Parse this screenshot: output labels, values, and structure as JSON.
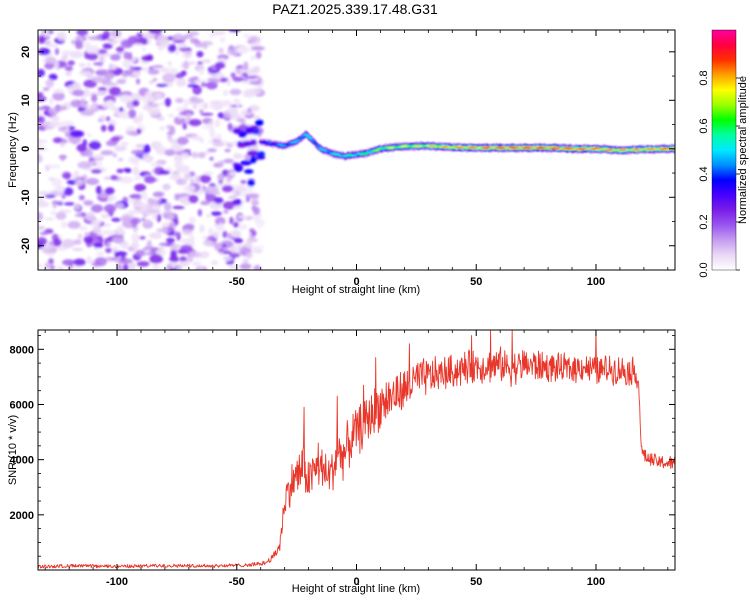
{
  "title": "PAZ1.2025.339.17.48.G31",
  "chart_data": [
    {
      "type": "heatmap",
      "xlabel": "Height of straight line (km)",
      "ylabel": "Frequency (Hz)",
      "xlim": [
        -133,
        133
      ],
      "ylim": [
        -25,
        24.5
      ],
      "xticks": [
        -100,
        -50,
        0,
        50,
        100
      ],
      "xtick_labels": [
        "-100",
        "-50",
        "0",
        "50",
        "100"
      ],
      "yticks": [
        -20,
        -10,
        0,
        10,
        20
      ],
      "ytick_labels": [
        "-20",
        "-10",
        "0",
        "10",
        "20"
      ],
      "noise_region": {
        "x_range": [
          -133,
          -40
        ],
        "frequency_range": [
          -25,
          24.5
        ],
        "level": "low amplitude noise 0.1-0.3"
      },
      "signal_ridge": {
        "x": [
          -40,
          -35,
          -30,
          -25,
          -21,
          -18,
          -15,
          -10,
          -5,
          0,
          5,
          10,
          15,
          20,
          30,
          40,
          50,
          60,
          70,
          80,
          90,
          100,
          110,
          120,
          133
        ],
        "frequency": [
          1.5,
          1.0,
          0.6,
          1.5,
          3.0,
          1.5,
          0.0,
          -1.0,
          -1.5,
          -1.2,
          -0.8,
          0.0,
          0.3,
          0.5,
          0.6,
          0.3,
          0.2,
          0.2,
          0.2,
          0.2,
          0.0,
          0.0,
          -0.3,
          -0.1,
          0.0
        ],
        "amplitude": [
          0.35,
          0.45,
          0.5,
          0.5,
          0.55,
          0.5,
          0.5,
          0.55,
          0.6,
          0.6,
          0.65,
          0.7,
          0.75,
          0.75,
          0.8,
          0.85,
          0.9,
          0.95,
          0.95,
          0.95,
          0.95,
          0.9,
          0.85,
          0.85,
          0.95
        ]
      },
      "colorbar": {
        "label": "Normalized spectral amplitude",
        "range": [
          0,
          1
        ],
        "ticks": [
          0.0,
          0.2,
          0.4,
          0.6,
          0.8
        ],
        "tick_labels": [
          "0.0",
          "0.2",
          "0.4",
          "0.6",
          "0.8"
        ],
        "colors": [
          "#ffffff",
          "#ead8f6",
          "#c59cf0",
          "#9a55f0",
          "#7a1ee8",
          "#4800ff",
          "#0000ff",
          "#0090ff",
          "#00eaff",
          "#00ffa0",
          "#00ff00",
          "#9aff00",
          "#ffff00",
          "#ffa000",
          "#ff3000",
          "#ff0040",
          "#ff00a0"
        ]
      }
    },
    {
      "type": "line",
      "xlabel": "Height of straight line (km)",
      "ylabel": "SNR (10 * v/v)",
      "xlim": [
        -133,
        133
      ],
      "ylim": [
        0,
        8700
      ],
      "xticks": [
        -100,
        -50,
        0,
        50,
        100
      ],
      "xtick_labels": [
        "-100",
        "-50",
        "0",
        "50",
        "100"
      ],
      "yticks": [
        2000,
        4000,
        6000,
        8000
      ],
      "ytick_labels": [
        "2000",
        "4000",
        "6000",
        "8000"
      ],
      "series": [
        {
          "name": "SNR",
          "color": "#e8362a",
          "x": [
            -133,
            -120,
            -100,
            -80,
            -60,
            -45,
            -38,
            -35,
            -32,
            -30,
            -28,
            -26,
            -24,
            -22,
            -20,
            -18,
            -15,
            -12,
            -10,
            -8,
            -5,
            -2,
            0,
            3,
            5,
            8,
            10,
            15,
            20,
            25,
            30,
            35,
            40,
            45,
            50,
            55,
            60,
            65,
            70,
            75,
            80,
            85,
            90,
            95,
            100,
            105,
            110,
            115,
            117,
            118,
            119,
            122,
            127,
            133
          ],
          "y": [
            120,
            150,
            130,
            160,
            150,
            180,
            260,
            450,
            900,
            2500,
            3000,
            3300,
            3500,
            3800,
            3200,
            3600,
            3700,
            3400,
            3600,
            4200,
            4200,
            4800,
            5000,
            5300,
            5500,
            5800,
            6000,
            6300,
            6500,
            6900,
            7000,
            7100,
            7200,
            7300,
            7400,
            7400,
            7450,
            7300,
            7450,
            7400,
            7350,
            7300,
            7300,
            7400,
            7200,
            7300,
            7250,
            7200,
            7200,
            6500,
            4300,
            4000,
            3900,
            3850
          ],
          "noise_amplitude": [
            60,
            60,
            60,
            60,
            60,
            60,
            80,
            150,
            300,
            700,
            800,
            900,
            1000,
            1000,
            900,
            900,
            900,
            900,
            900,
            1000,
            1000,
            1000,
            1000,
            1000,
            1000,
            1000,
            1000,
            900,
            900,
            800,
            800,
            700,
            700,
            700,
            700,
            700,
            700,
            700,
            700,
            700,
            600,
            600,
            600,
            600,
            600,
            600,
            600,
            600,
            600,
            600,
            300,
            300,
            300,
            300
          ],
          "spikes": [
            [
              -22,
              5900
            ],
            [
              -16,
              4600
            ],
            [
              -8,
              6300
            ],
            [
              3,
              6700
            ],
            [
              8,
              7700
            ],
            [
              22,
              8200
            ],
            [
              48,
              8500
            ],
            [
              56,
              8700
            ],
            [
              65,
              8700
            ],
            [
              100,
              8700
            ]
          ]
        }
      ]
    }
  ]
}
